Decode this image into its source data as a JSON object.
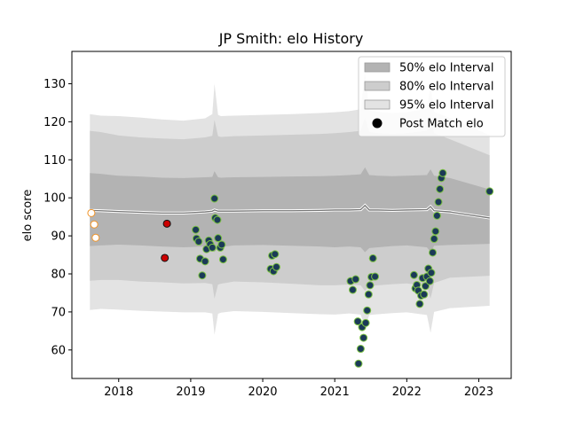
{
  "chart_data": {
    "type": "scatter",
    "title": "JP Smith: elo History",
    "xlabel": "",
    "ylabel": "elo score",
    "xlim": [
      2017.35,
      2023.45
    ],
    "ylim": [
      52.5,
      138.5
    ],
    "x_ticks": [
      2018,
      2019,
      2020,
      2021,
      2022,
      2023
    ],
    "y_ticks": [
      60,
      70,
      80,
      90,
      100,
      110,
      120,
      130
    ],
    "legend": {
      "position": "top-right",
      "entries": [
        "50% elo Interval",
        "80% elo Interval",
        "95% elo Interval",
        "Post Match elo"
      ]
    },
    "bands": {
      "x": [
        2017.6,
        2017.75,
        2018.0,
        2018.3,
        2018.6,
        2018.9,
        2019.2,
        2019.3,
        2019.33,
        2019.38,
        2019.42,
        2019.6,
        2020.0,
        2020.4,
        2020.8,
        2021.0,
        2021.2,
        2021.36,
        2021.42,
        2021.48,
        2021.6,
        2021.8,
        2022.0,
        2022.28,
        2022.33,
        2022.38,
        2022.6,
        2023.15
      ],
      "median": [
        96.7,
        96.6,
        96.4,
        96.2,
        96.0,
        96.0,
        96.3,
        96.5,
        96.8,
        96.5,
        96.5,
        96.5,
        96.6,
        96.6,
        96.7,
        96.8,
        96.8,
        96.9,
        98.0,
        96.8,
        96.8,
        96.7,
        96.8,
        96.9,
        97.7,
        96.6,
        96.3,
        94.7
      ],
      "p50_low": [
        87.3,
        87.5,
        87.7,
        87.5,
        87.2,
        87.0,
        87.2,
        87.0,
        85.7,
        87.0,
        87.1,
        87.5,
        87.6,
        87.4,
        87.2,
        87.0,
        87.2,
        87.0,
        85.7,
        86.8,
        87.0,
        87.3,
        87.5,
        87.0,
        85.7,
        87.4,
        87.6,
        87.9
      ],
      "p50_high": [
        106.5,
        106.3,
        105.8,
        105.6,
        105.3,
        105.2,
        105.4,
        105.5,
        107.0,
        105.4,
        105.3,
        105.4,
        105.5,
        105.6,
        105.7,
        105.8,
        106.0,
        106.2,
        108.0,
        106.0,
        105.8,
        105.7,
        105.8,
        106.0,
        107.5,
        105.8,
        105.2,
        102.2
      ],
      "p80_low": [
        78.2,
        78.4,
        78.4,
        78.0,
        77.8,
        77.5,
        77.6,
        77.3,
        73.5,
        77.2,
        77.4,
        78.0,
        77.8,
        77.4,
        77.0,
        77.0,
        77.2,
        77.0,
        75.5,
        76.8,
        77.0,
        77.3,
        77.5,
        76.8,
        73.5,
        77.6,
        79.0,
        79.5
      ],
      "p80_high": [
        117.6,
        117.3,
        116.4,
        115.9,
        115.6,
        115.4,
        115.9,
        116.3,
        120.5,
        116.2,
        116.0,
        116.2,
        116.4,
        116.6,
        116.8,
        117.0,
        117.3,
        117.6,
        121.0,
        117.3,
        117.0,
        116.8,
        117.0,
        117.6,
        120.5,
        117.0,
        115.4,
        111.2
      ],
      "p95_low": [
        70.5,
        70.8,
        70.6,
        70.3,
        70.1,
        69.9,
        69.9,
        69.6,
        64.0,
        69.5,
        69.8,
        70.2,
        70.0,
        69.7,
        69.4,
        69.3,
        69.6,
        69.3,
        66.0,
        69.2,
        69.4,
        69.7,
        69.9,
        69.2,
        64.5,
        70.0,
        71.0,
        71.6
      ],
      "p95_high": [
        122.0,
        121.6,
        121.5,
        121.1,
        120.6,
        120.3,
        120.9,
        122.0,
        130.0,
        121.8,
        121.5,
        121.6,
        121.8,
        122.0,
        122.3,
        122.5,
        122.8,
        123.3,
        133.0,
        123.0,
        122.6,
        122.3,
        122.5,
        123.4,
        129.5,
        122.6,
        121.0,
        116.5
      ]
    },
    "points_neutral": [
      {
        "x": 2017.62,
        "y": 96.0
      },
      {
        "x": 2017.66,
        "y": 93.0
      },
      {
        "x": 2017.68,
        "y": 89.5
      }
    ],
    "points_red": [
      {
        "x": 2018.67,
        "y": 93.2
      },
      {
        "x": 2018.64,
        "y": 84.2
      }
    ],
    "points_post_match": [
      {
        "x": 2019.07,
        "y": 91.6
      },
      {
        "x": 2019.08,
        "y": 89.3
      },
      {
        "x": 2019.11,
        "y": 88.5
      },
      {
        "x": 2019.13,
        "y": 84.0
      },
      {
        "x": 2019.16,
        "y": 79.6
      },
      {
        "x": 2019.2,
        "y": 83.3
      },
      {
        "x": 2019.22,
        "y": 86.5
      },
      {
        "x": 2019.25,
        "y": 88.8
      },
      {
        "x": 2019.27,
        "y": 87.8
      },
      {
        "x": 2019.3,
        "y": 86.9
      },
      {
        "x": 2019.33,
        "y": 99.8
      },
      {
        "x": 2019.34,
        "y": 94.7
      },
      {
        "x": 2019.37,
        "y": 94.2
      },
      {
        "x": 2019.38,
        "y": 89.4
      },
      {
        "x": 2019.41,
        "y": 86.9
      },
      {
        "x": 2019.43,
        "y": 87.7
      },
      {
        "x": 2019.45,
        "y": 83.8
      },
      {
        "x": 2020.11,
        "y": 81.3
      },
      {
        "x": 2020.13,
        "y": 84.8
      },
      {
        "x": 2020.15,
        "y": 80.7
      },
      {
        "x": 2020.17,
        "y": 85.2
      },
      {
        "x": 2020.19,
        "y": 81.8
      },
      {
        "x": 2021.22,
        "y": 78.1
      },
      {
        "x": 2021.25,
        "y": 75.8
      },
      {
        "x": 2021.29,
        "y": 78.6
      },
      {
        "x": 2021.32,
        "y": 67.5
      },
      {
        "x": 2021.33,
        "y": 56.4
      },
      {
        "x": 2021.36,
        "y": 60.3
      },
      {
        "x": 2021.38,
        "y": 66.0
      },
      {
        "x": 2021.4,
        "y": 63.2
      },
      {
        "x": 2021.43,
        "y": 67.1
      },
      {
        "x": 2021.45,
        "y": 70.4
      },
      {
        "x": 2021.47,
        "y": 74.6
      },
      {
        "x": 2021.49,
        "y": 77.0
      },
      {
        "x": 2021.51,
        "y": 79.2
      },
      {
        "x": 2021.53,
        "y": 84.1
      },
      {
        "x": 2021.56,
        "y": 79.3
      },
      {
        "x": 2022.1,
        "y": 79.7
      },
      {
        "x": 2022.12,
        "y": 76.2
      },
      {
        "x": 2022.14,
        "y": 77.1
      },
      {
        "x": 2022.16,
        "y": 75.6
      },
      {
        "x": 2022.18,
        "y": 72.1
      },
      {
        "x": 2022.2,
        "y": 74.3
      },
      {
        "x": 2022.22,
        "y": 78.9
      },
      {
        "x": 2022.24,
        "y": 74.6
      },
      {
        "x": 2022.26,
        "y": 76.8
      },
      {
        "x": 2022.28,
        "y": 79.3
      },
      {
        "x": 2022.3,
        "y": 81.4
      },
      {
        "x": 2022.32,
        "y": 78.1
      },
      {
        "x": 2022.34,
        "y": 80.3
      },
      {
        "x": 2022.36,
        "y": 85.6
      },
      {
        "x": 2022.38,
        "y": 89.2
      },
      {
        "x": 2022.4,
        "y": 91.2
      },
      {
        "x": 2022.42,
        "y": 95.3
      },
      {
        "x": 2022.44,
        "y": 98.9
      },
      {
        "x": 2022.46,
        "y": 102.3
      },
      {
        "x": 2022.48,
        "y": 105.2
      },
      {
        "x": 2022.5,
        "y": 106.5
      },
      {
        "x": 2023.15,
        "y": 101.7
      }
    ],
    "colors": {
      "band_50": "#b3b3b3",
      "band_80": "#cdcdcd",
      "band_95": "#e3e3e3",
      "median_line": "#777777",
      "median_halo": "#ffffff",
      "point_post_match_fill": "#1b3a57",
      "point_post_match_edge": "#7cc243",
      "point_neutral_fill": "#ffffff",
      "point_neutral_edge": "#f0952a",
      "point_red_fill": "#cc0000",
      "point_red_edge": "#111111",
      "legend_marker": "#000000"
    }
  }
}
